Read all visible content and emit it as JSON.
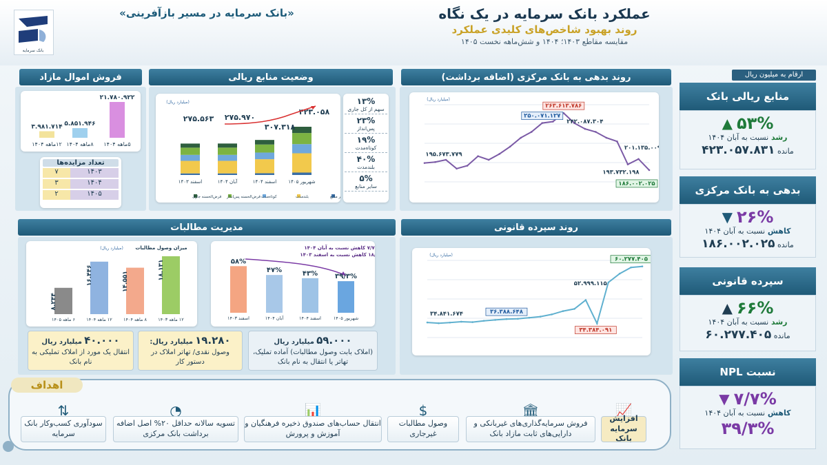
{
  "header": {
    "slogan": "«بانک سرمایه در مسیر بازآفرینی»",
    "title": "عملکرد بانک سرمایه در یک نگاه",
    "subtitle": "روند بهبود شاخص‌های کلیدی عملکرد",
    "note": "مقایسه مقاطع ۱۴۰۳؛ ۱۴۰۴ و شش‌ماهه نخست ۱۴۰۵",
    "unit_note": "ارقام به میلیون ریال",
    "logo_text": "بانک سرمایه"
  },
  "kpis": [
    {
      "title": "منابع ریالی بانک",
      "pct": "۵۳%",
      "dir": "up",
      "label": "رشد",
      "line": "نسبت به آبان ۱۴۰۴",
      "remain_label": "مانده",
      "remain": "۴۲۳.۰۵۷.۸۳۱"
    },
    {
      "title": "بدهی به بانک مرکزی",
      "pct": "۲۶%",
      "dir": "down",
      "label": "کاهش",
      "line": "نسبت به آبان ۱۴۰۴",
      "remain_label": "مانده",
      "remain": "۱۸۶.۰۰۲.۰۲۵"
    },
    {
      "title": "سپرده قانونی",
      "pct": "۶۶%",
      "dir": "up",
      "label": "رشد",
      "line": "نسبت به آبان ۱۴۰۴",
      "remain_label": "مانده",
      "remain": "۶۰.۲۷۷.۴۰۵"
    },
    {
      "title": "نسبت NPL",
      "pct": "۷/۷%",
      "dir": "down",
      "label": "کاهش",
      "line": "نسبت به آبان ۱۴۰۴",
      "extra": "۳۹/۳%"
    }
  ],
  "panels": {
    "assets": "فروش اموال مازاد",
    "funds": "وضعیت منابع ریالی",
    "cb": "روند بدهی به بانک مرکزی (اضافه برداشت)",
    "claims": "مدیریت مطالبات",
    "legal": "روند سپرده قانونی"
  },
  "assets_chart": {
    "categories": [
      "۵ماهه ۱۴۰۴",
      "۸ماهه ۱۴۰۴",
      "۱۲ماهه ۱۴۰۴"
    ],
    "values": [
      21780922,
      5851946,
      3981714
    ],
    "labels": [
      "۲۱.۷۸۰.۹۲۲",
      "۵.۸۵۱.۹۴۶",
      "۳.۹۸۱.۷۱۴"
    ],
    "colors": [
      "#d98fe0",
      "#9fd0ee",
      "#f3e39b"
    ]
  },
  "auctions": {
    "title": "تعداد مزایده‌ها",
    "rows": [
      {
        "year": "۱۴۰۳",
        "count": "۷"
      },
      {
        "year": "۱۴۰۴",
        "count": "۳"
      },
      {
        "year": "۱۴۰۵",
        "count": "۲"
      }
    ]
  },
  "funds_chart": {
    "unit": "(میلیارد ریال)",
    "categories": [
      "شهریور ۱۴۰۵",
      "اسفند ۱۴۰۴",
      "آبان ۱۴۰۴",
      "اسفند ۱۴۰۳"
    ],
    "totals": [
      "۴۲۳.۰۵۸",
      "۳۰۷.۳۱۸",
      "۲۷۵.۹۷۰",
      "۲۷۵.۵۶۳"
    ],
    "total_values": [
      423058,
      307318,
      275970,
      275563
    ],
    "legend": [
      "سایر منابع",
      "بلندمدت",
      "کوتاه‌مدت",
      "قرض‌الحسنه پس‌انداز",
      "قرض‌الحسنه جاری"
    ],
    "colors": [
      "#3a6ea5",
      "#f2c94c",
      "#6fa8dc",
      "#7cb342",
      "#2e5e3e"
    ],
    "shares": [
      {
        "pct": "۱۳%",
        "label": "سهم از کل جاری"
      },
      {
        "pct": "۲۳%",
        "label": "پس‌انداز"
      },
      {
        "pct": "۱۹%",
        "label": "کوتاه‌مدت"
      },
      {
        "pct": "۴۰%",
        "label": "بلندمدت"
      },
      {
        "pct": "۵%",
        "label": "سایر منابع"
      }
    ]
  },
  "cb_chart": {
    "unit": "(میلیارد ریال)",
    "type": "line",
    "values": [
      195673779,
      197000000,
      200000000,
      188000000,
      192000000,
      205000000,
      200000000,
      208000000,
      218000000,
      230000000,
      238000000,
      250071127,
      252000000,
      263613786,
      250000000,
      242087304,
      238000000,
      230000000,
      225000000,
      193732198,
      201135009,
      186002025
    ],
    "labels": [
      {
        "i": 0,
        "text": "۱۹۵.۶۷۳.۷۷۹",
        "style": "plain"
      },
      {
        "i": 11,
        "text": "۲۵۰.۰۷۱.۱۲۷",
        "style": "blue"
      },
      {
        "i": 13,
        "text": "۲۶۳.۶۱۳.۷۸۶",
        "style": "red"
      },
      {
        "i": 15,
        "text": "۲۴۲.۰۸۷.۳۰۴",
        "style": "plain"
      },
      {
        "i": 19,
        "text": "۱۹۳.۷۳۲.۱۹۸",
        "style": "plain"
      },
      {
        "i": 20,
        "text": "۲۰۱.۱۳۵.۰۰۹",
        "style": "plain"
      },
      {
        "i": 21,
        "text": "۱۸۶.۰۰۲.۰۲۵",
        "style": "green"
      }
    ],
    "ymin": 170000000,
    "ymax": 275000000
  },
  "legal_chart": {
    "unit": "(میلیارد ریال)",
    "type": "line",
    "values": [
      34841674,
      34500000,
      34800000,
      35200000,
      35000000,
      35600000,
      36000000,
      36388648,
      36500000,
      37000000,
      37500000,
      38500000,
      40000000,
      41000000,
      45000000,
      34384091,
      52999115,
      57000000,
      59800000,
      60277405
    ],
    "labels": [
      {
        "i": 0,
        "text": "۳۴.۸۴۱.۶۷۴",
        "style": "plain"
      },
      {
        "i": 7,
        "text": "۳۶.۳۸۸.۶۴۸",
        "style": "blue"
      },
      {
        "i": 15,
        "text": "۳۴.۳۸۴.۰۹۱",
        "style": "red"
      },
      {
        "i": 16,
        "text": "۵۲.۹۹۹.۱۱۵",
        "style": "plain"
      },
      {
        "i": 19,
        "text": "۶۰.۲۷۷.۴۰۵",
        "style": "green"
      }
    ],
    "ymin": 28000000,
    "ymax": 63000000
  },
  "claims_bar": {
    "title": "میزان وصول مطالبات",
    "unit": "(میلیارد ریال)",
    "categories": [
      "۱۲ ماهه ۱۴۰۳",
      "۸ ماهه ۱۴۰۴",
      "۱۲ ماهه ۱۴۰۴",
      "۶ ماهه ۱۴۰۵"
    ],
    "values": [
      18131,
      14551,
      16446,
      8244
    ],
    "labels": [
      "۱۸.۱۳۱",
      "۱۴.۵۵۱",
      "۱۶.۴۴۶",
      "۸.۲۴۴"
    ],
    "colors": [
      "#9ccc65",
      "#f3a98c",
      "#8fb3e0",
      "#8a8a8a"
    ]
  },
  "npl_chart": {
    "note1": "۷/۷% کاهش نسبت به آبان ۱۴۰۴",
    "note2": "۱۸/۷% کاهش نسبت به اسفند ۱۴۰۳",
    "categories": [
      "اسفند ۱۴۰۳",
      "آبان ۱۴۰۴",
      "اسفند ۱۴۰۴",
      "شهریور ۱۴۰۵"
    ],
    "values": [
      58,
      47,
      43,
      39.3
    ],
    "labels": [
      "۵۸%",
      "۴۷%",
      "۴۳%",
      "۳۹/۳%"
    ],
    "colors": [
      "#f4a582",
      "#a8c8e8",
      "#9ec3e6",
      "#6aa6e0"
    ]
  },
  "claims_boxes": [
    {
      "amount": "۵۹.۰۰۰",
      "unit": "میلیارد ریال",
      "text": "(املاک بابت وصول مطالبات) آماده تملیک، تهاتر یا انتقال به نام بانک"
    },
    {
      "amount": "۱۹.۲۸۰",
      "unit": "میلیارد ریال:",
      "text": "وصول نقدی/ تهاتر املاک در دستور کار"
    },
    {
      "amount": "۴۰.۰۰۰",
      "unit": "میلیارد ریال",
      "text": "انتقال یک مورد از املاک تملیکی به نام بانک"
    }
  ],
  "goals": {
    "title": "اهداف",
    "items": [
      {
        "icon": "chart-up-icon",
        "glyph": "📈",
        "text": "افزایش سرمایه بانک",
        "highlight": true
      },
      {
        "icon": "bank-icon",
        "glyph": "🏛",
        "text": "فروش سرمایه‌گذاری‌های غیربانکی و دارایی‌های ثابت مازاد بانک",
        "highlight": false
      },
      {
        "icon": "dollar-icon",
        "glyph": "$",
        "text": "وصول مطالبات غیرجاری",
        "highlight": false
      },
      {
        "icon": "bar-chart-icon",
        "glyph": "📊",
        "text": "انتقال حساب‌های صندوق ذخیره فرهنگیان و آموزش و پرورش",
        "highlight": false
      },
      {
        "icon": "pie-icon",
        "glyph": "◔",
        "text": "تسویه سالانه حداقل ۲۰% اصل اضافه برداشت بانک مرکزی",
        "highlight": false
      },
      {
        "icon": "sort-icon",
        "glyph": "⇅",
        "text": "سودآوری کسب‌وکار بانک سرمایه",
        "highlight": false
      }
    ]
  }
}
